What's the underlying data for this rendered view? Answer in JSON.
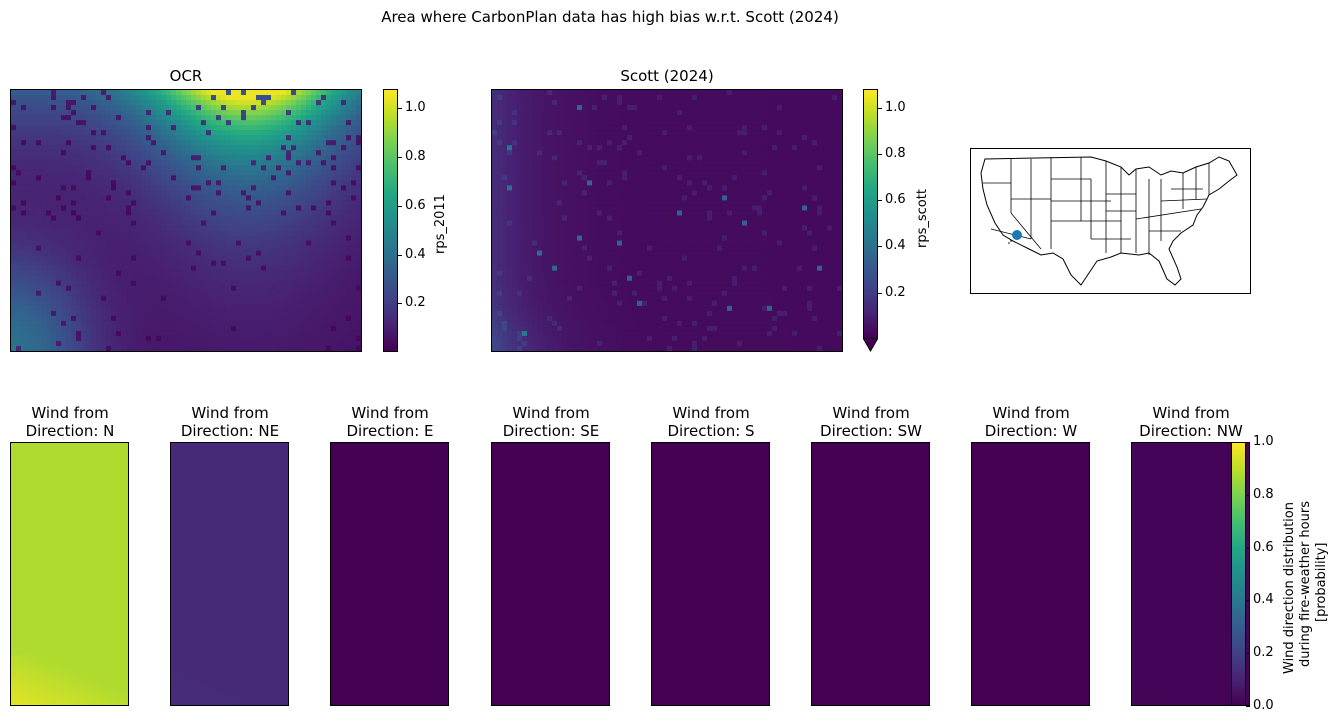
{
  "title": "Area where CarbonPlan data has high bias w.r.t. Scott (2024)",
  "chart_data": [
    {
      "type": "heatmap",
      "title": "OCR",
      "colorbar_label": "rps_2011",
      "colormap": "viridis",
      "clim": [
        0.0,
        1.08
      ],
      "colorbar_ticks": [
        "0.2",
        "0.4",
        "0.6",
        "0.8",
        "1.0"
      ],
      "pattern": "high values (~1.0) at top-center, gradient to low (<0.1) toward bottom and right; moderate (~0.3) at bottom-left"
    },
    {
      "type": "heatmap",
      "title": "Scott (2024)",
      "colorbar_label": "rps_scott",
      "colormap": "viridis",
      "clim": [
        0.0,
        1.08
      ],
      "colorbar_extend": "min",
      "colorbar_ticks": [
        "0.2",
        "0.4",
        "0.6",
        "0.8",
        "1.0"
      ],
      "pattern": "mostly very low (~0.02); slightly elevated (~0.1-0.2) at left edge"
    },
    {
      "type": "map",
      "region": "Contiguous United States",
      "marker": "southern California",
      "marker_color": "#1f77b4"
    },
    {
      "type": "heatmap",
      "colorbar_label": "Wind direction distribution\nduring fire-weather hours\n[probability]",
      "colormap": "viridis",
      "clim": [
        0.0,
        1.0
      ],
      "colorbar_ticks": [
        "0.0",
        "0.2",
        "0.4",
        "0.6",
        "0.8",
        "1.0"
      ],
      "panels": [
        {
          "title": "Wind from\nDirection: N",
          "value": 0.88
        },
        {
          "title": "Wind from\nDirection: NE",
          "value": 0.12
        },
        {
          "title": "Wind from\nDirection: E",
          "value": 0.0
        },
        {
          "title": "Wind from\nDirection: SE",
          "value": 0.0
        },
        {
          "title": "Wind from\nDirection: S",
          "value": 0.0
        },
        {
          "title": "Wind from\nDirection: SW",
          "value": 0.0
        },
        {
          "title": "Wind from\nDirection: W",
          "value": 0.0
        },
        {
          "title": "Wind from\nDirection: NW",
          "value": 0.01
        }
      ]
    }
  ]
}
